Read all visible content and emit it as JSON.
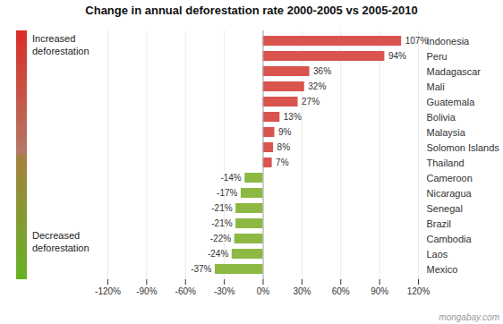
{
  "chart_data": {
    "type": "bar",
    "orientation": "horizontal",
    "title": "Change in annual deforestation rate 2000-2005 vs 2005-2010",
    "categories": [
      "Indonesia",
      "Peru",
      "Madagascar",
      "Mali",
      "Guatemala",
      "Bolivia",
      "Malaysia",
      "Solomon Islands",
      "Thailand",
      "Cameroon",
      "Nicaragua",
      "Senegal",
      "Brazil",
      "Cambodia",
      "Laos",
      "Mexico"
    ],
    "values": [
      107,
      94,
      36,
      32,
      27,
      13,
      9,
      8,
      7,
      -14,
      -17,
      -21,
      -21,
      -22,
      -24,
      -37
    ],
    "value_labels": [
      "107%",
      "94%",
      "36%",
      "32%",
      "27%",
      "13%",
      "9%",
      "8%",
      "7%",
      "-14%",
      "-17%",
      "-21%",
      "-21%",
      "-22%",
      "-24%",
      "-37%"
    ],
    "data_labels": true,
    "colors": [
      "#d9534f",
      "#d9534f",
      "#d9534f",
      "#d9534f",
      "#d9534f",
      "#d9534f",
      "#d9534f",
      "#d9534f",
      "#d9534f",
      "#8db843",
      "#8db843",
      "#8db843",
      "#8db843",
      "#8db843",
      "#8db843",
      "#8db843"
    ],
    "xlim": [
      -120,
      120
    ],
    "xticks": [
      {
        "value": -120,
        "label": "-120%"
      },
      {
        "value": -90,
        "label": "-90%"
      },
      {
        "value": -60,
        "label": "-60%"
      },
      {
        "value": -30,
        "label": "-30%"
      },
      {
        "value": 0,
        "label": "0%"
      },
      {
        "value": 30,
        "label": "30%"
      },
      {
        "value": 60,
        "label": "60%"
      },
      {
        "value": 90,
        "label": "90%"
      },
      {
        "value": 120,
        "label": "120%"
      }
    ],
    "grid": true,
    "annotations": [
      "Increased\ndeforestation",
      "Decreased\ndeforestation",
      "mongabay.com"
    ]
  }
}
